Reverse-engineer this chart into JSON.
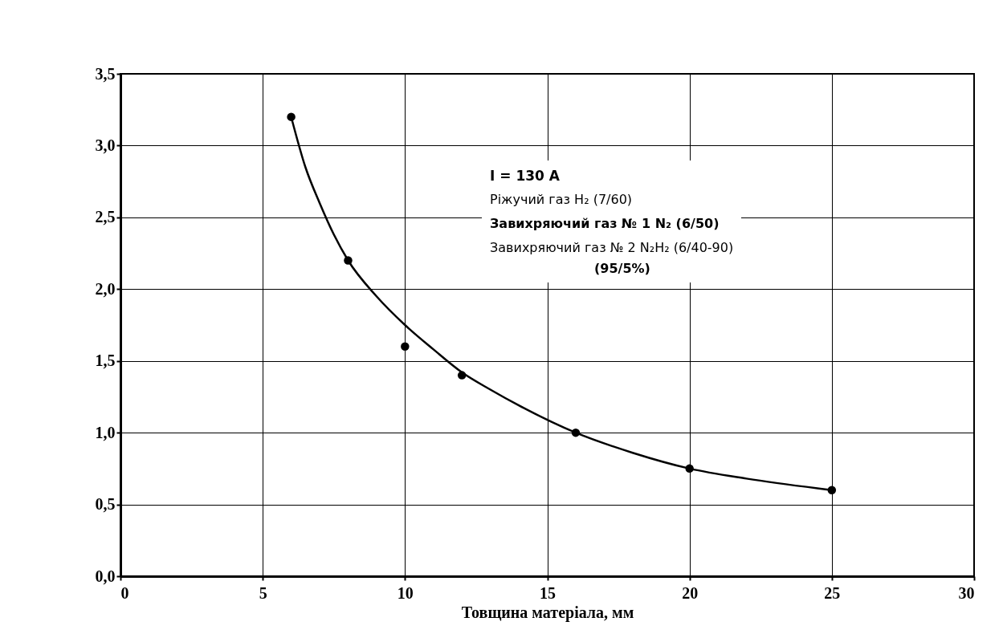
{
  "chart_data": {
    "type": "scatter",
    "xlabel": "Товщина матеріала, мм",
    "xlim": [
      0,
      30
    ],
    "xticks": [
      0,
      5,
      10,
      15,
      20,
      25,
      30
    ],
    "ylim": [
      0,
      3.5
    ],
    "yticks": [
      {
        "value": 0,
        "label": "0,0"
      },
      {
        "value": 0.5,
        "label": "0,5"
      },
      {
        "value": 1,
        "label": "1,0"
      },
      {
        "value": 1.5,
        "label": "1,5"
      },
      {
        "value": 2,
        "label": "2,0"
      },
      {
        "value": 2.5,
        "label": "2,5"
      },
      {
        "value": 3,
        "label": "3,0"
      },
      {
        "value": 3.5,
        "label": "3,5"
      }
    ],
    "grid": true,
    "series": [
      {
        "type": "line",
        "marker": "none",
        "color": "#000000",
        "x": [
          6,
          6.5,
          7,
          7.5,
          8,
          9,
          10,
          11,
          12,
          13,
          14,
          16,
          18,
          20,
          22,
          25
        ],
        "values": [
          3.2,
          2.85,
          2.6,
          2.38,
          2.2,
          1.95,
          1.75,
          1.58,
          1.42,
          1.3,
          1.19,
          1.0,
          0.86,
          0.75,
          0.68,
          0.6
        ]
      },
      {
        "marker": "circle",
        "color": "#000000",
        "x": [
          6,
          8,
          10,
          12,
          16,
          20,
          25
        ],
        "values": [
          3.2,
          2.2,
          1.6,
          1.4,
          1.0,
          0.75,
          0.6
        ]
      }
    ],
    "annotations": [
      "I = 130 A",
      "Ріжучий газ H₂ (7/60)",
      "Завихряючий газ № 1 N₂ (6/50)",
      "Завихряючий газ № 2 N₂H₂  (6/40-90)",
      "(95/5%)"
    ]
  }
}
